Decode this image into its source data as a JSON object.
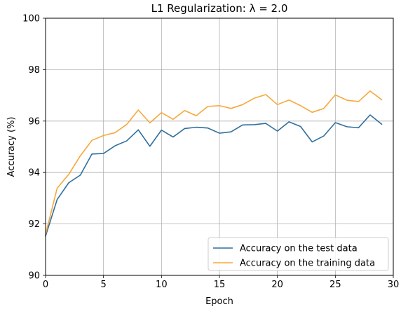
{
  "chart_data": {
    "type": "line",
    "title": "L1 Regularization: λ = 2.0",
    "xlabel": "Epoch",
    "ylabel": "Accuracy (%)",
    "xlim": [
      0,
      30
    ],
    "ylim": [
      90,
      100
    ],
    "xticks": [
      0,
      5,
      10,
      15,
      20,
      25,
      30
    ],
    "yticks": [
      90,
      92,
      94,
      96,
      98,
      100
    ],
    "grid": true,
    "legend_position": "lower-right",
    "x": [
      0,
      1,
      2,
      3,
      4,
      5,
      6,
      7,
      8,
      9,
      10,
      11,
      12,
      13,
      14,
      15,
      16,
      17,
      18,
      19,
      20,
      21,
      22,
      23,
      24,
      25,
      26,
      27,
      28,
      29
    ],
    "series": [
      {
        "name": "Accuracy on the test data",
        "color": "#2f6f9f",
        "values": [
          91.53,
          92.95,
          93.6,
          93.9,
          94.72,
          94.74,
          95.04,
          95.23,
          95.66,
          95.02,
          95.65,
          95.38,
          95.71,
          95.76,
          95.73,
          95.53,
          95.58,
          95.85,
          95.86,
          95.91,
          95.61,
          95.97,
          95.79,
          95.19,
          95.42,
          95.94,
          95.78,
          95.74,
          96.24,
          95.88
        ]
      },
      {
        "name": "Accuracy on the training data",
        "color": "#f7a83b",
        "values": [
          91.6,
          93.39,
          93.93,
          94.65,
          95.25,
          95.44,
          95.55,
          95.87,
          96.43,
          95.93,
          96.33,
          96.07,
          96.41,
          96.21,
          96.57,
          96.6,
          96.49,
          96.64,
          96.89,
          97.03,
          96.64,
          96.82,
          96.6,
          96.34,
          96.49,
          97.02,
          96.81,
          96.76,
          97.17,
          96.83
        ]
      }
    ]
  }
}
